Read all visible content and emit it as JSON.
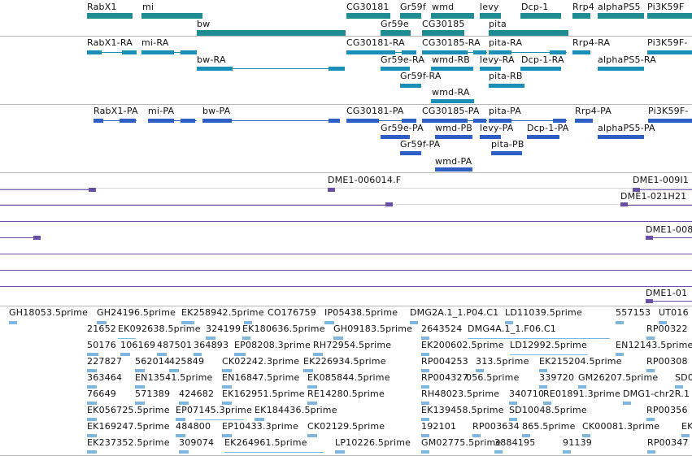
{
  "colors": {
    "gene": "#1f8c93",
    "transcript": "#1a8fb8",
    "polypeptide": "#2d5fc4",
    "alignment": "#6a4fa6",
    "est": "#7db7e0",
    "separator": "#b8b8b8"
  },
  "genes": {
    "row1": [
      "RabX1",
      "mi",
      "CG30181",
      "Gr59f",
      "wmd",
      "levy",
      "Dcp-1",
      "Rrp4",
      "alphaPS5",
      "Pi3K59F"
    ],
    "row2": [
      "bw",
      "Gr59e",
      "CG30185",
      "pita"
    ]
  },
  "transcripts": {
    "row1": [
      "RabX1-RA",
      "mi-RA",
      "CG30181-RA",
      "CG30185-RA",
      "pita-RA",
      "Rrp4-RA",
      "Pi3K59F-"
    ],
    "row2": [
      "bw-RA",
      "Gr59e-RA",
      "wmd-RB",
      "levy-RA",
      "Dcp-1-RA",
      "alphaPS5-RA"
    ],
    "row3": [
      "Gr59f-RA",
      "pita-RB"
    ],
    "row4": [
      "wmd-RA"
    ]
  },
  "polypeptides": {
    "row1": [
      "RabX1-PA",
      "mi-PA",
      "bw-PA",
      "CG30181-PA",
      "CG30185-PA",
      "pita-PA",
      "Rrp4-PA",
      "Pi3K59F-"
    ],
    "row2": [
      "Gr59e-PA",
      "wmd-PB",
      "levy-PA",
      "Dcp-1-PA",
      "alphaPS5-PA"
    ],
    "row3": [
      "Gr59f-PA",
      "pita-PB"
    ],
    "row4": [
      "wmd-PA"
    ]
  },
  "alignments": [
    "DME1-006014.F",
    "DME1-009I1",
    "DME1-021H21",
    "DME1-008",
    "DME1-01"
  ],
  "ests": [
    [
      "GH18053.5prime",
      "GH24196.5prime",
      "EK258942.5prime",
      "CO176759",
      "IP05438.5prime",
      "DMG2A.1_1.P04.C1",
      "LD11039.5prime",
      "557153",
      "UT016"
    ],
    [
      "21652",
      "EK092638.5prime",
      "324199",
      "EK180636.5prime",
      "GH09183.5prime",
      "2643524",
      "DMG4A.1_1.F06.C1",
      "RP00322"
    ],
    [
      "50176",
      "106169",
      "487501",
      "364893",
      "EP08208.3prime",
      "RH72954.5prime",
      "EK200602.5prime",
      "LD12992.5prime",
      "EN12143.5prime"
    ],
    [
      "227827",
      "562014",
      "425849",
      "CK02242.3prime",
      "EK226934.5prime",
      "RP004253",
      "313.5prime",
      "EK215204.5prime",
      "RP00308"
    ],
    [
      "363464",
      "EN13541.5prime",
      "EN16847.5prime",
      "EK085844.5prime",
      "RP004327",
      "056.5prime",
      "339720",
      "GM26207.5prime",
      "SD0"
    ],
    [
      "76649",
      "571389",
      "424682",
      "EK162951.5prime",
      "RE14280.5prime",
      "RH48023.5prime",
      "340710",
      "RE01891.3prime",
      "DMG1-chr2R.1"
    ],
    [
      "EK056725.5prime",
      "EP07145.3prime",
      "EK184436.5prime",
      "EK139458.5prime",
      "SD10048.5prime",
      "RP00356"
    ],
    [
      "EK169247.5prime",
      "484800",
      "EP10433.3prime",
      "CK02129.5prime",
      "192101",
      "RP003634",
      "865.5prime",
      "CK00081.3prime",
      "EK"
    ],
    [
      "EK237352.5prime",
      "309074",
      "EK264961.5prime",
      "LP10226.5prime",
      "GM02775.5prime",
      "3884195",
      "91139",
      "RP00347"
    ]
  ]
}
